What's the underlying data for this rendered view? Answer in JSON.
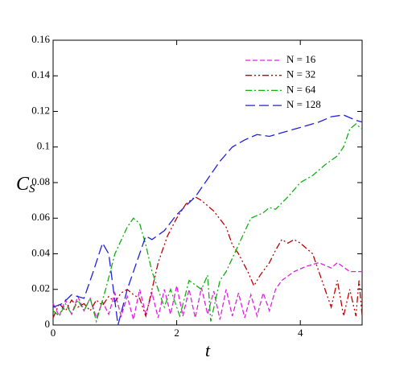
{
  "chart_data": {
    "type": "line",
    "xlabel": "t",
    "ylabel": "C",
    "ylabel_subscript": "S",
    "xlim": [
      0,
      5
    ],
    "ylim": [
      0,
      0.16
    ],
    "xticks": [
      0,
      2,
      4
    ],
    "yticks": [
      0,
      0.02,
      0.04,
      0.06,
      0.08,
      0.1,
      0.12,
      0.14,
      0.16
    ],
    "legend": "upper right",
    "series": [
      {
        "name": "N = 16",
        "color": "#e020e0",
        "x": [
          0,
          0.1,
          0.2,
          0.3,
          0.4,
          0.5,
          0.6,
          0.7,
          0.8,
          0.9,
          1.0,
          1.1,
          1.2,
          1.3,
          1.4,
          1.5,
          1.6,
          1.7,
          1.8,
          1.9,
          2.0,
          2.1,
          2.2,
          2.3,
          2.4,
          2.5,
          2.6,
          2.7,
          2.8,
          2.9,
          3.0,
          3.1,
          3.2,
          3.3,
          3.4,
          3.5,
          3.6,
          3.7,
          3.9,
          4.1,
          4.3,
          4.5,
          4.6,
          4.8,
          5.0
        ],
        "values": [
          0.012,
          0.005,
          0.014,
          0.006,
          0.016,
          0.008,
          0.015,
          0.004,
          0.013,
          0.006,
          0.018,
          0.005,
          0.016,
          0.003,
          0.02,
          0.006,
          0.018,
          0.004,
          0.02,
          0.006,
          0.022,
          0.005,
          0.02,
          0.004,
          0.021,
          0.006,
          0.019,
          0.003,
          0.02,
          0.005,
          0.018,
          0.004,
          0.017,
          0.005,
          0.018,
          0.008,
          0.02,
          0.025,
          0.03,
          0.033,
          0.035,
          0.032,
          0.035,
          0.03,
          0.03
        ]
      },
      {
        "name": "N = 32",
        "color": "#c00000",
        "x": [
          0,
          0.1,
          0.2,
          0.3,
          0.4,
          0.5,
          0.6,
          0.7,
          0.8,
          0.9,
          1.0,
          1.1,
          1.2,
          1.3,
          1.4,
          1.5,
          1.6,
          1.7,
          1.85,
          2.0,
          2.15,
          2.3,
          2.4,
          2.6,
          2.8,
          2.9,
          3.0,
          3.15,
          3.25,
          3.35,
          3.5,
          3.6,
          3.7,
          3.8,
          3.9,
          4.0,
          4.2,
          4.3,
          4.4,
          4.5,
          4.6,
          4.7,
          4.8,
          4.9,
          4.95,
          5.0
        ],
        "values": [
          0.004,
          0.012,
          0.008,
          0.014,
          0.01,
          0.012,
          0.008,
          0.014,
          0.011,
          0.016,
          0.013,
          0.018,
          0.02,
          0.017,
          0.015,
          0.005,
          0.02,
          0.035,
          0.05,
          0.06,
          0.068,
          0.072,
          0.07,
          0.064,
          0.055,
          0.045,
          0.04,
          0.03,
          0.022,
          0.028,
          0.035,
          0.042,
          0.048,
          0.046,
          0.048,
          0.046,
          0.04,
          0.03,
          0.02,
          0.01,
          0.025,
          0.005,
          0.02,
          0.005,
          0.025,
          0.005
        ]
      },
      {
        "name": "N = 64",
        "color": "#10b010",
        "x": [
          0,
          0.1,
          0.2,
          0.3,
          0.4,
          0.5,
          0.6,
          0.7,
          0.85,
          1.0,
          1.2,
          1.3,
          1.4,
          1.5,
          1.6,
          1.7,
          1.8,
          1.9,
          2.05,
          2.2,
          2.4,
          2.5,
          2.55,
          2.7,
          2.8,
          3.0,
          3.2,
          3.4,
          3.5,
          3.6,
          3.8,
          4.0,
          4.2,
          4.4,
          4.6,
          4.7,
          4.8,
          4.9,
          5.0
        ],
        "values": [
          0.008,
          0.005,
          0.012,
          0.006,
          0.014,
          0.008,
          0.015,
          0.002,
          0.02,
          0.04,
          0.055,
          0.06,
          0.057,
          0.045,
          0.03,
          0.02,
          0.01,
          0.02,
          0.005,
          0.025,
          0.02,
          0.028,
          0.002,
          0.025,
          0.03,
          0.045,
          0.06,
          0.063,
          0.066,
          0.065,
          0.072,
          0.08,
          0.084,
          0.09,
          0.095,
          0.1,
          0.11,
          0.113,
          0.11
        ]
      },
      {
        "name": "N = 128",
        "color": "#2020e0",
        "x": [
          0,
          0.15,
          0.3,
          0.5,
          0.65,
          0.8,
          0.9,
          1.05,
          1.2,
          1.4,
          1.5,
          1.6,
          1.8,
          2.0,
          2.3,
          2.5,
          2.7,
          2.9,
          3.1,
          3.3,
          3.5,
          3.7,
          3.9,
          4.1,
          4.3,
          4.5,
          4.7,
          4.9,
          5.0
        ],
        "values": [
          0.01,
          0.012,
          0.017,
          0.015,
          0.03,
          0.046,
          0.04,
          0.0,
          0.02,
          0.04,
          0.05,
          0.048,
          0.053,
          0.062,
          0.072,
          0.082,
          0.092,
          0.1,
          0.104,
          0.107,
          0.106,
          0.108,
          0.11,
          0.112,
          0.114,
          0.117,
          0.118,
          0.115,
          0.114
        ]
      }
    ]
  }
}
